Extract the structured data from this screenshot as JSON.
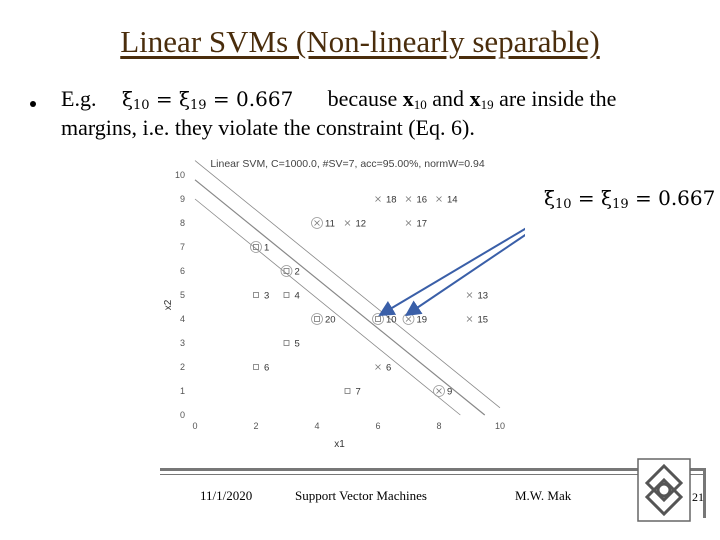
{
  "slide": {
    "title": "Linear SVMs (Non-linearly separable)",
    "bullet": {
      "prefix": "E.g.",
      "formula": {
        "xi": "ξ",
        "sub_a": "10",
        "sub_b": "19",
        "eq": "=",
        "value": "0.667"
      },
      "because": "because",
      "x10_bold": "x",
      "x10_sub": "10",
      "and": "and",
      "x19_bold": "x",
      "x19_sub": "19",
      "rest": "are inside the",
      "line2": "margins, i.e. they violate the constraint (Eq. 6)."
    },
    "footer": {
      "date": "11/1/2020",
      "course": "Support Vector Machines",
      "author": "M.W. Mak",
      "page": "21"
    }
  },
  "chart_data": {
    "type": "scatter",
    "title": "Linear SVM, C=1000.0, #SV=7, acc=95.00%, normW=0.94",
    "xlabel": "x1",
    "ylabel": "x2",
    "xlim": [
      0,
      10
    ],
    "ylim": [
      0,
      10
    ],
    "xticks": [
      0,
      2,
      4,
      6,
      8,
      10
    ],
    "yticks": [
      0,
      1,
      2,
      3,
      4,
      5,
      6,
      7,
      8,
      9,
      10
    ],
    "points": [
      {
        "label": "1",
        "x": 2,
        "y": 7,
        "class": "square",
        "sv": true
      },
      {
        "label": "2",
        "x": 3,
        "y": 6,
        "class": "square",
        "sv": true
      },
      {
        "label": "3",
        "x": 2,
        "y": 5,
        "class": "square",
        "sv": false
      },
      {
        "label": "4",
        "x": 3,
        "y": 5,
        "class": "square",
        "sv": false
      },
      {
        "label": "5",
        "x": 3,
        "y": 3,
        "class": "square",
        "sv": false
      },
      {
        "label": "6",
        "x": 2,
        "y": 2,
        "class": "square",
        "sv": false
      },
      {
        "label": "7",
        "x": 5,
        "y": 1,
        "class": "square",
        "sv": false
      },
      {
        "label": "11",
        "x": 4,
        "y": 8,
        "class": "cross",
        "sv": true
      },
      {
        "label": "12",
        "x": 5,
        "y": 8,
        "class": "cross",
        "sv": false
      },
      {
        "label": "18",
        "x": 6,
        "y": 9,
        "class": "cross",
        "sv": false
      },
      {
        "label": "16",
        "x": 7,
        "y": 9,
        "class": "cross",
        "sv": false
      },
      {
        "label": "14",
        "x": 8,
        "y": 9,
        "class": "cross",
        "sv": false
      },
      {
        "label": "17",
        "x": 7,
        "y": 8,
        "class": "cross",
        "sv": false
      },
      {
        "label": "13",
        "x": 9,
        "y": 5,
        "class": "cross",
        "sv": false
      },
      {
        "label": "15",
        "x": 9,
        "y": 4,
        "class": "cross",
        "sv": false
      },
      {
        "label": "6",
        "x": 6,
        "y": 2,
        "class": "cross",
        "sv": false
      },
      {
        "label": "9",
        "x": 8,
        "y": 1,
        "class": "cross",
        "sv": true
      },
      {
        "label": "20",
        "x": 4,
        "y": 4,
        "class": "square",
        "sv": true
      },
      {
        "label": "10",
        "x": 6,
        "y": 4,
        "class": "square",
        "sv": true
      },
      {
        "label": "19",
        "x": 7,
        "y": 4,
        "class": "cross",
        "sv": true
      }
    ],
    "lines": [
      {
        "name": "decision",
        "x1": 0,
        "y1": 9.8,
        "x2": 9.5,
        "y2": 0
      },
      {
        "name": "margin-upper",
        "x1": 0,
        "y1": 10.6,
        "x2": 10,
        "y2": 0.3
      },
      {
        "name": "margin-lower",
        "x1": 0,
        "y1": 9.0,
        "x2": 8.7,
        "y2": 0
      }
    ],
    "annotation": {
      "text_xi": "ξ",
      "sub_a": "10",
      "sub_b": "19",
      "value": "0.667"
    },
    "colors": {
      "arrow": "#3a5fa8",
      "title_text": "#4a2d0c",
      "axis": "#555555"
    },
    "grid": false
  }
}
